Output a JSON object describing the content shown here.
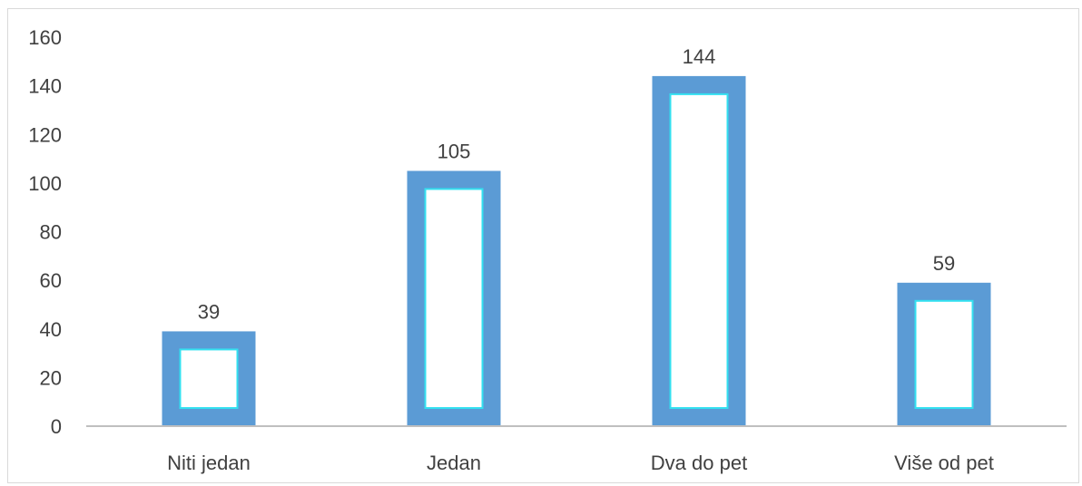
{
  "chart_data": {
    "type": "bar",
    "categories": [
      "Niti jedan",
      "Jedan",
      "Dva do pet",
      "Više od pet"
    ],
    "values": [
      39,
      105,
      144,
      59
    ],
    "data_labels": [
      "39",
      "105",
      "144",
      "59"
    ],
    "y_ticks": [
      "0",
      "20",
      "40",
      "60",
      "80",
      "100",
      "120",
      "140",
      "160"
    ],
    "ylim": [
      0,
      160
    ],
    "grid": false,
    "legend": "none",
    "colors": {
      "bar_border": "#5b9bd5",
      "bar_fill": "#ffffff",
      "inner_outline": "#33e0f0",
      "axis": "#bfbfbf",
      "text": "#404040"
    }
  }
}
